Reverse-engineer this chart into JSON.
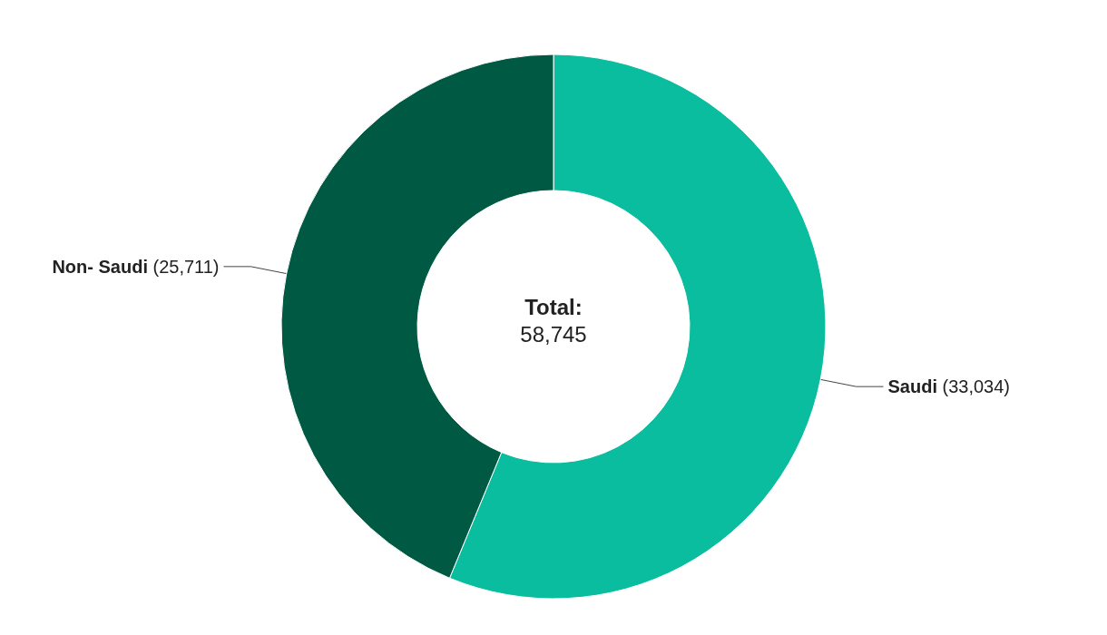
{
  "chart_data": {
    "type": "donut",
    "categories": [
      "Saudi",
      "Non- Saudi"
    ],
    "values": [
      33034,
      25711
    ],
    "colors": [
      "#0bbd9f",
      "#005a43"
    ],
    "value_labels": [
      "(33,034)",
      "(25,711)"
    ],
    "annotations": [
      "Total:",
      "58,745"
    ],
    "legend": false
  }
}
